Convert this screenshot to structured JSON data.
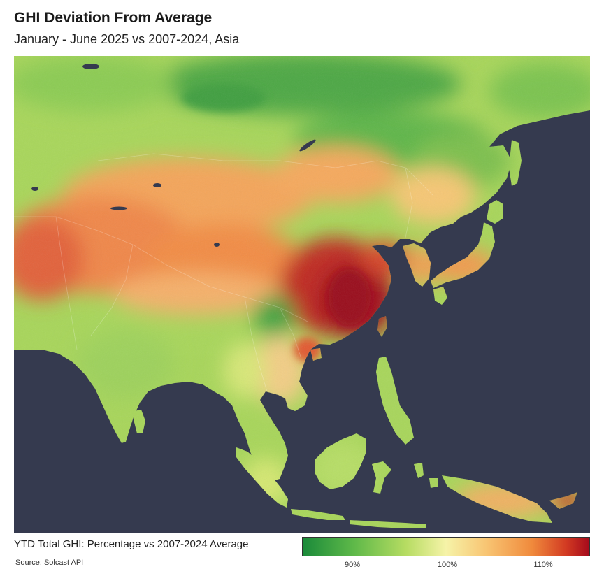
{
  "title": "GHI Deviation From Average",
  "subtitle": "January - June 2025 vs 2007-2024, Asia",
  "legend": {
    "label": "YTD Total GHI: Percentage vs 2007-2024 Average",
    "source": "Source: Solcast API",
    "ticks": [
      "90%",
      "100%",
      "110%"
    ],
    "colors": {
      "low": "#1a8a3a",
      "mid": "#f6f3a8",
      "high": "#a50a1c",
      "ocean": "#353a4f"
    }
  }
}
